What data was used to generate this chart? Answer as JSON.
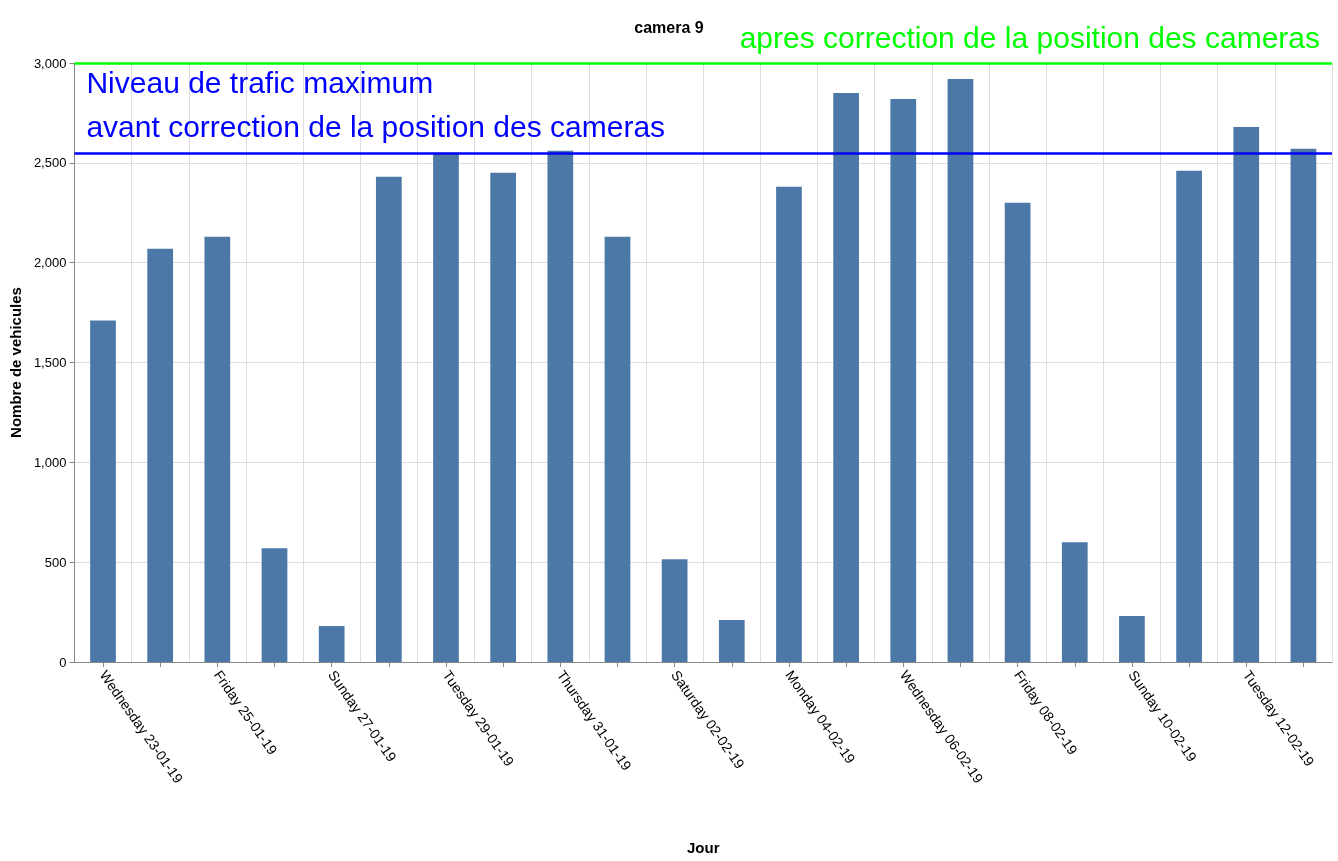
{
  "chart_data": {
    "type": "bar",
    "title": "camera 9",
    "xlabel": "Jour",
    "ylabel": "Nombre de vehicules",
    "categories": [
      "Wednesday 23-01-19",
      null,
      "Friday 25-01-19",
      null,
      "Sunday 27-01-19",
      null,
      "Tuesday 29-01-19",
      null,
      "Thursday 31-01-19",
      null,
      "Saturday 02-02-19",
      null,
      "Monday 04-02-19",
      null,
      "Wednesday 06-02-19",
      null,
      "Friday 08-02-19",
      null,
      "Sunday 10-02-19",
      null,
      "Tuesday 12-02-19",
      null
    ],
    "values": [
      1710,
      2070,
      2130,
      570,
      180,
      2430,
      2550,
      2450,
      2560,
      2130,
      515,
      210,
      2380,
      2850,
      2820,
      2920,
      2300,
      600,
      230,
      2460,
      2680,
      2570
    ],
    "color": "#4c78a8",
    "ylim": [
      0,
      3000
    ],
    "yticks": [
      {
        "value": 0,
        "label": "0"
      },
      {
        "value": 500,
        "label": "500"
      },
      {
        "value": 1000,
        "label": "1,000"
      },
      {
        "value": 1500,
        "label": "1,500"
      },
      {
        "value": 2000,
        "label": "2,000"
      },
      {
        "value": 2500,
        "label": "2,500"
      },
      {
        "value": 3000,
        "label": "3,000"
      }
    ],
    "grid": true,
    "ref_lines": [
      {
        "axis": "y",
        "value": 2550,
        "label": "Niveau de trafic maximum\navant correction de la position des cameras",
        "color": "#0000ff"
      },
      {
        "axis": "y",
        "value": 3000,
        "label": "apres correction de la position des cameras",
        "color": "#00ff00"
      }
    ]
  }
}
